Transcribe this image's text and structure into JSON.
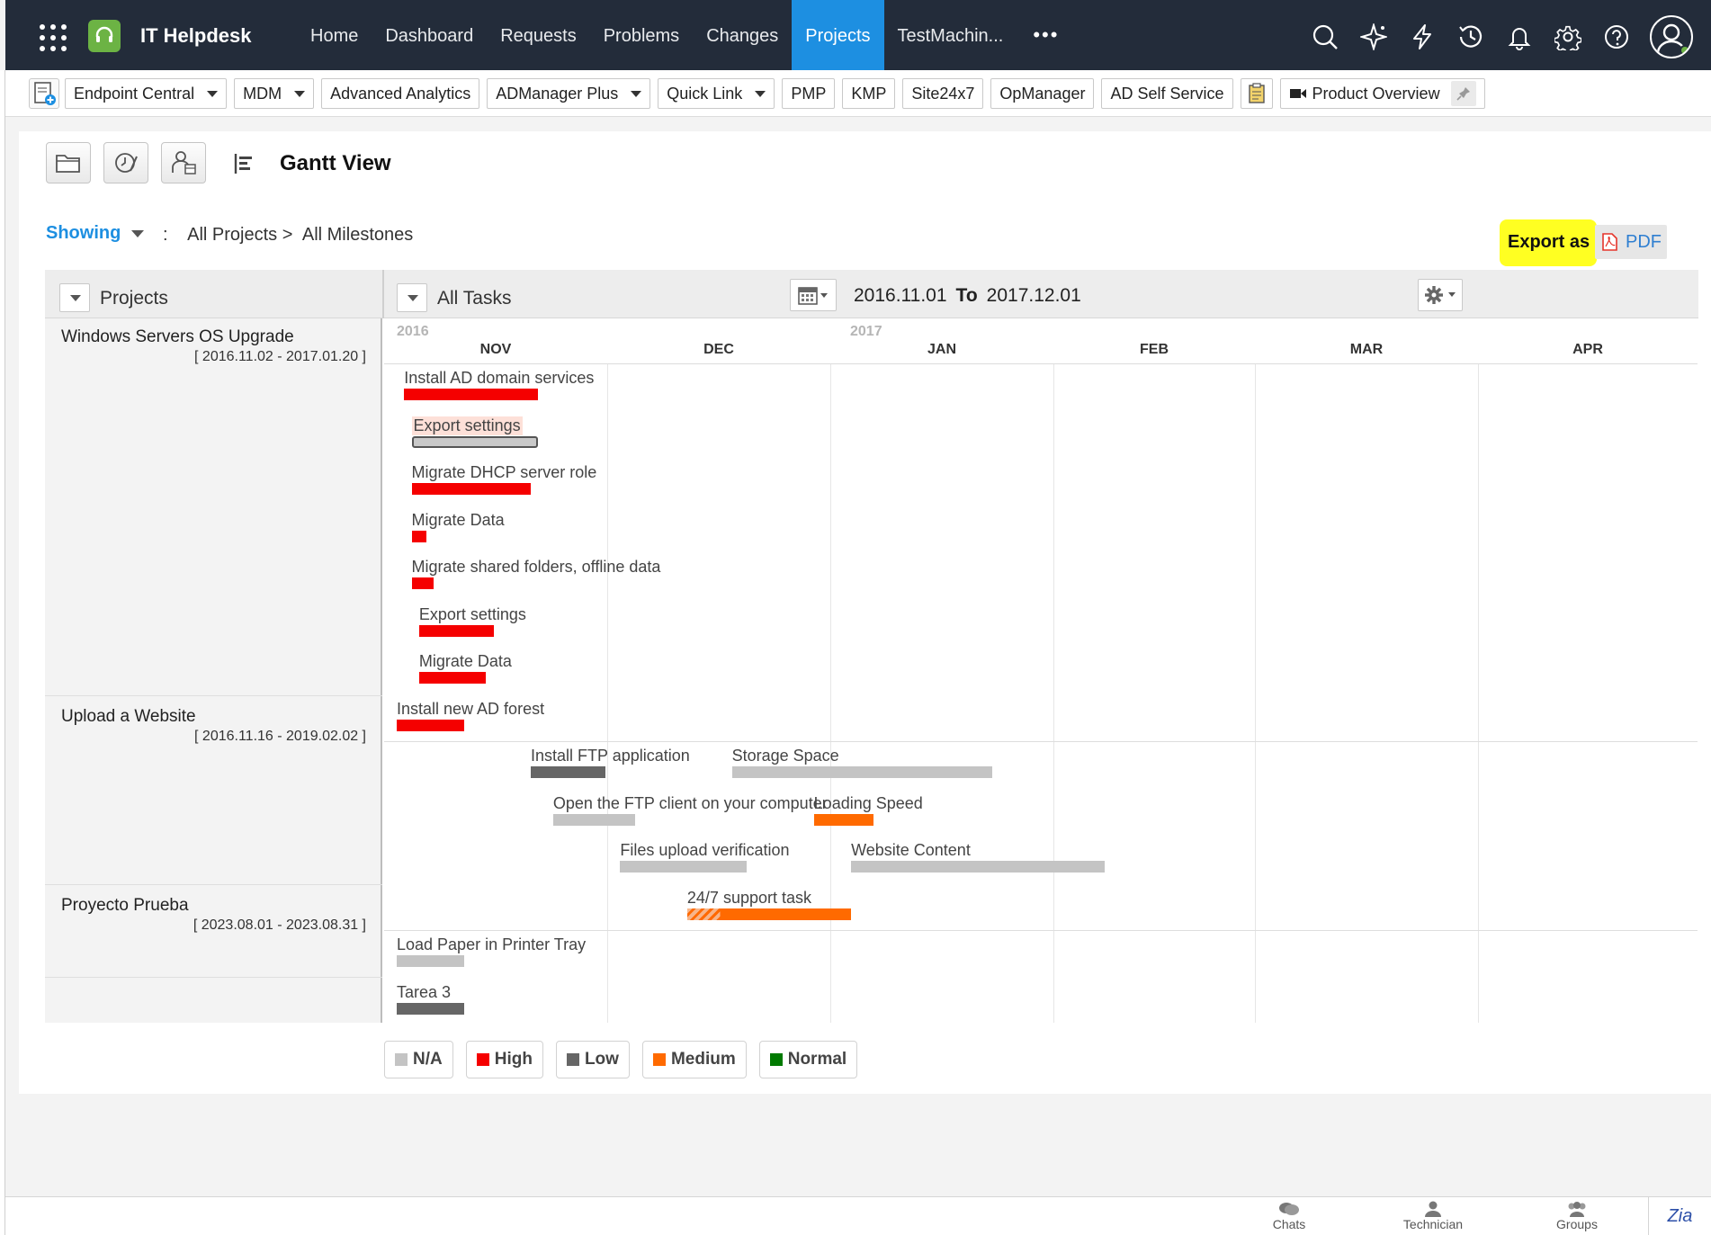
{
  "app": {
    "title": "IT Helpdesk"
  },
  "nav": [
    "Home",
    "Dashboard",
    "Requests",
    "Problems",
    "Changes",
    "Projects",
    "TestMachin...",
    "•••"
  ],
  "nav_active": "Projects",
  "top_icons": [
    "search-icon",
    "sparkle-icon",
    "bolt-icon",
    "history-icon",
    "bell-icon",
    "gear-icon",
    "help-icon",
    "user-avatar-icon"
  ],
  "quick_links": [
    {
      "label": "Endpoint Central",
      "dropdown": true
    },
    {
      "label": "MDM",
      "dropdown": true
    },
    {
      "label": "Advanced Analytics",
      "dropdown": false
    },
    {
      "label": "ADManager Plus",
      "dropdown": true
    },
    {
      "label": "Quick Link",
      "dropdown": true
    },
    {
      "label": "PMP",
      "dropdown": false
    },
    {
      "label": "KMP",
      "dropdown": false
    },
    {
      "label": "Site24x7",
      "dropdown": false
    },
    {
      "label": "OpManager",
      "dropdown": false
    },
    {
      "label": "AD Self Service",
      "dropdown": false
    }
  ],
  "product_overview": "Product Overview",
  "page": {
    "title": "Gantt View",
    "showing_label": "Showing",
    "crumb_projects": "All Projects >",
    "crumb_milestones": "All Milestones",
    "export_label": "Export as",
    "pdf_label": "PDF"
  },
  "grid": {
    "projects_header": "Projects",
    "tasks_header": "All Tasks",
    "range_from": "2016.11.01",
    "range_to_label": "To",
    "range_to": "2017.12.01"
  },
  "timeline": {
    "years": [
      "2016",
      "2017"
    ],
    "months": [
      "NOV",
      "DEC",
      "JAN",
      "FEB",
      "MAR",
      "APR"
    ]
  },
  "priority_colors": {
    "N/A": "#c4c4c4",
    "High": "#f50000",
    "Low": "#666666",
    "Medium": "#ff6a00",
    "Normal": "#007a00"
  },
  "projects": [
    {
      "name": "Windows Servers OS Upgrade",
      "dates": "[ 2016.11.02 - 2017.01.20 ]",
      "tasks": [
        {
          "name": "Install AD domain services",
          "start": "2016-11-02",
          "end": "2016-11-20",
          "priority": "High"
        },
        {
          "name": "Export settings",
          "start": "2016-11-03",
          "end": "2016-11-20",
          "priority": "Selected"
        },
        {
          "name": "Migrate DHCP server role",
          "start": "2016-11-03",
          "end": "2016-11-19",
          "priority": "High"
        },
        {
          "name": "Migrate Data",
          "start": "2016-11-03",
          "end": "2016-11-05",
          "priority": "High"
        },
        {
          "name": "Migrate shared folders, offline data",
          "start": "2016-11-03",
          "end": "2016-11-06",
          "priority": "High"
        },
        {
          "name": "Export settings",
          "start": "2016-11-04",
          "end": "2016-11-14",
          "priority": "High"
        },
        {
          "name": "Migrate Data",
          "start": "2016-11-04",
          "end": "2016-11-13",
          "priority": "High"
        },
        {
          "name": "Install new AD forest",
          "start": "2016-11-01",
          "end": "2016-11-10",
          "priority": "High"
        }
      ]
    },
    {
      "name": "Upload a Website",
      "dates": "[ 2016.11.16 - 2019.02.02 ]",
      "tasks": [
        {
          "name": "Install FTP application",
          "start": "2016-11-19",
          "end": "2016-11-29",
          "priority": "Low"
        },
        {
          "name": "Storage Space",
          "start": "2016-12-16",
          "end": "2017-01-20",
          "priority": "N/A"
        },
        {
          "name": "Open the FTP client on your computer",
          "start": "2016-11-22",
          "end": "2016-12-03",
          "priority": "N/A"
        },
        {
          "name": "Loading Speed",
          "start": "2016-12-27",
          "end": "2017-01-04",
          "priority": "Medium"
        },
        {
          "name": "Files upload verification",
          "start": "2016-12-01",
          "end": "2016-12-18",
          "priority": "N/A"
        },
        {
          "name": "Website Content",
          "start": "2017-01-01",
          "end": "2017-02-04",
          "priority": "N/A"
        },
        {
          "name": "24/7 support task",
          "start": "2016-12-10",
          "end": "2017-01-01",
          "priority": "Medium",
          "progress": 0.2
        }
      ]
    },
    {
      "name": "Proyecto Prueba",
      "dates": "[ 2023.08.01 - 2023.08.31 ]",
      "tasks": [
        {
          "name": "Load Paper in Printer Tray",
          "start": "2016-11-01",
          "end": "2016-11-10",
          "priority": "N/A"
        },
        {
          "name": "Tarea 3",
          "start": "2016-11-01",
          "end": "2016-11-10",
          "priority": "Low"
        }
      ]
    }
  ],
  "legend": [
    "N/A",
    "High",
    "Low",
    "Medium",
    "Normal"
  ],
  "footer": {
    "chats": "Chats",
    "technician": "Technician",
    "groups": "Groups",
    "zia": "Zia"
  }
}
